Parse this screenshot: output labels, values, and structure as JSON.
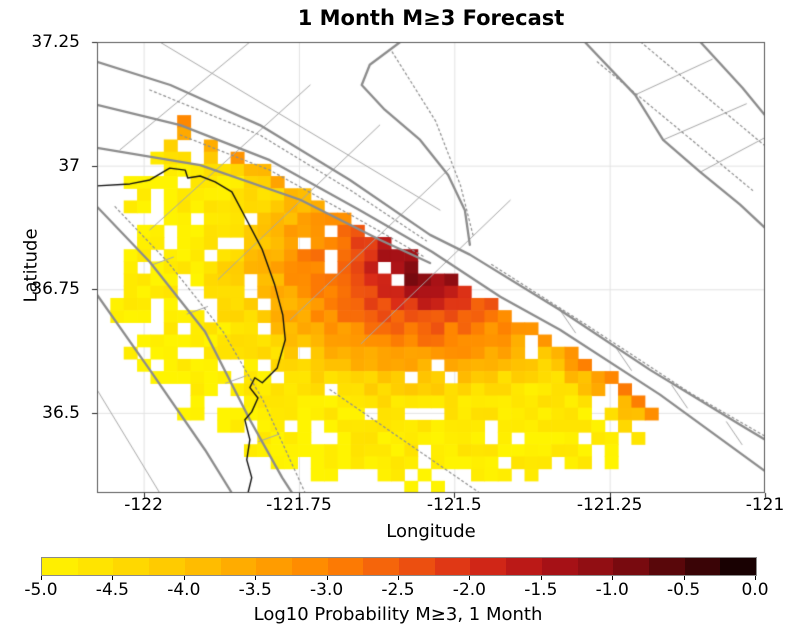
{
  "chart_data": {
    "type": "heatmap",
    "title": "1 Month M≥3 Forecast",
    "xlabel": "Longitude",
    "ylabel": "Latitude",
    "xlim": [
      -122.075,
      -121.0
    ],
    "ylim": [
      36.338,
      37.25
    ],
    "grid_on": true,
    "x_ticks": [
      {
        "value": -122.0,
        "label": "-122"
      },
      {
        "value": -121.75,
        "label": "-121.75"
      },
      {
        "value": -121.5,
        "label": "-121.5"
      },
      {
        "value": -121.25,
        "label": "-121.25"
      },
      {
        "value": -121.0,
        "label": "-121"
      }
    ],
    "y_ticks": [
      {
        "value": 37.25,
        "label": "37.25"
      },
      {
        "value": 37.0,
        "label": "37"
      },
      {
        "value": 36.75,
        "label": "36.75"
      },
      {
        "value": 36.5,
        "label": "36.5"
      }
    ],
    "grid": {
      "ncols": 50,
      "nrows": 37
    },
    "colorbar": {
      "label": "Log10 Probability M≥3, 1 Month",
      "min": -5.0,
      "max": 0.0,
      "segments": 20,
      "ticks": [
        {
          "value": -5.0,
          "label": "-5.0"
        },
        {
          "value": -4.5,
          "label": "-4.5"
        },
        {
          "value": -4.0,
          "label": "-4.0"
        },
        {
          "value": -3.5,
          "label": "-3.5"
        },
        {
          "value": -3.0,
          "label": "-3.0"
        },
        {
          "value": -2.5,
          "label": "-2.5"
        },
        {
          "value": -2.0,
          "label": "-2.0"
        },
        {
          "value": -1.5,
          "label": "-1.5"
        },
        {
          "value": -1.0,
          "label": "-1.0"
        },
        {
          "value": -0.5,
          "label": "-0.5"
        },
        {
          "value": 0.0,
          "label": "0.0"
        }
      ],
      "stops": [
        [
          -5.0,
          "#fff400"
        ],
        [
          -4.5,
          "#ffdf00"
        ],
        [
          -4.0,
          "#ffc400"
        ],
        [
          -3.5,
          "#ffa400"
        ],
        [
          -3.0,
          "#ff8400"
        ],
        [
          -2.5,
          "#f25a0e"
        ],
        [
          -2.0,
          "#da2c17"
        ],
        [
          -1.5,
          "#b01317"
        ],
        [
          -1.0,
          "#870c11"
        ],
        [
          -0.5,
          "#4a0508"
        ],
        [
          0.0,
          "#080000"
        ]
      ]
    },
    "field": {
      "description": "log10 probability of M>=3 in 1 month per cell; yellow background ~-4.5, orange band ~-3 along fault zone, peak ~-0.25 at hotspot",
      "lon_compress": 0.8,
      "background_level": -4.2,
      "background_edge_drop": 0.8,
      "noise_amplitude": 0.3,
      "hotspot": {
        "lon": -121.548,
        "lat": 36.794,
        "peak": -0.25,
        "falloff": 11.0,
        "falloff_exp": 0.72
      },
      "band": {
        "level": -3.0,
        "decay_per_deg": 28,
        "path": [
          [
            -122.075,
            37.123
          ],
          [
            -121.941,
            37.082
          ],
          [
            -121.797,
            37.011
          ],
          [
            -121.652,
            36.91
          ],
          [
            -121.548,
            36.81
          ],
          [
            -121.42,
            36.72
          ],
          [
            -121.28,
            36.6
          ],
          [
            -121.13,
            36.47
          ]
        ]
      },
      "region": {
        "center": [
          -121.52,
          36.8
        ],
        "rx_deg": 0.53,
        "ry_deg": 0.465,
        "edge_jitter": 0.14,
        "clip_lines": [
          {
            "a": [
              -121.29,
              37.25
            ],
            "b": [
              -121.0,
              36.874
            ]
          },
          {
            "a": [
              -121.33,
              36.638
            ],
            "b": [
              -121.0,
              36.389
            ]
          }
        ]
      },
      "speckle": {
        "base": 0.05,
        "edge": 0.55,
        "edge_power": 5
      }
    },
    "overlays": {
      "colors": {
        "fault": "#8c8c8c",
        "thin": "#a8a8a8",
        "dotted": "#8f8f8f",
        "coast": "#111111",
        "graticule": "#e3e3e3"
      },
      "faults_major": [
        [
          [
            -122.075,
            37.21
          ],
          [
            -121.957,
            37.163
          ],
          [
            -121.813,
            37.082
          ],
          [
            -121.668,
            36.971
          ],
          [
            -121.539,
            36.86
          ],
          [
            -121.475,
            36.82
          ],
          [
            -121.33,
            36.708
          ],
          [
            -121.185,
            36.587
          ],
          [
            -121.04,
            36.476
          ],
          [
            -120.992,
            36.44
          ]
        ],
        [
          [
            -122.075,
            37.123
          ],
          [
            -121.941,
            37.082
          ],
          [
            -121.797,
            37.011
          ],
          [
            -121.652,
            36.91
          ],
          [
            -121.536,
            36.826
          ],
          [
            -121.426,
            36.735
          ],
          [
            -121.33,
            36.668
          ],
          [
            -121.169,
            36.537
          ],
          [
            -120.992,
            36.375
          ]
        ],
        [
          [
            -122.075,
            37.036
          ],
          [
            -121.909,
            37.001
          ],
          [
            -121.748,
            36.931
          ],
          [
            -121.62,
            36.85
          ],
          [
            -121.539,
            36.803
          ]
        ],
        [
          [
            -121.587,
            37.25
          ],
          [
            -121.636,
            37.204
          ],
          [
            -121.649,
            37.163
          ],
          [
            -121.612,
            37.113
          ],
          [
            -121.555,
            37.052
          ],
          [
            -121.51,
            36.981
          ],
          [
            -121.483,
            36.91
          ],
          [
            -121.475,
            36.84
          ]
        ],
        [
          [
            -121.29,
            37.25
          ],
          [
            -121.209,
            37.143
          ],
          [
            -121.164,
            37.052
          ],
          [
            -121.104,
            36.987
          ],
          [
            -121.04,
            36.921
          ],
          [
            -121.0,
            36.874
          ]
        ],
        [
          [
            -121.104,
            37.25
          ],
          [
            -121.036,
            37.157
          ],
          [
            -121.0,
            37.102
          ]
        ],
        [
          [
            -122.075,
            36.917
          ],
          [
            -121.99,
            36.805
          ],
          [
            -121.901,
            36.664
          ],
          [
            -121.829,
            36.486
          ],
          [
            -121.777,
            36.369
          ],
          [
            -121.761,
            36.338
          ]
        ],
        [
          [
            -122.075,
            36.739
          ],
          [
            -121.99,
            36.587
          ],
          [
            -121.901,
            36.425
          ],
          [
            -121.858,
            36.338
          ]
        ]
      ],
      "faults_dotted": [
        [
          [
            -121.99,
            37.153
          ],
          [
            -121.813,
            37.062
          ],
          [
            -121.668,
            36.951
          ],
          [
            -121.545,
            36.848
          ]
        ],
        [
          [
            -121.941,
            37.062
          ],
          [
            -121.797,
            36.991
          ],
          [
            -121.652,
            36.89
          ],
          [
            -121.549,
            36.816
          ]
        ],
        [
          [
            -121.44,
            36.8
          ],
          [
            -121.29,
            36.68
          ],
          [
            -121.12,
            36.54
          ],
          [
            -120.992,
            36.447
          ]
        ],
        [
          [
            -122.046,
            36.917
          ],
          [
            -121.961,
            36.805
          ],
          [
            -121.872,
            36.664
          ],
          [
            -121.808,
            36.526
          ],
          [
            -121.74,
            36.338
          ]
        ],
        [
          [
            -121.27,
            37.21
          ],
          [
            -121.02,
            36.95
          ]
        ],
        [
          [
            -121.2,
            37.25
          ],
          [
            -121.0,
            37.04
          ]
        ],
        [
          [
            -121.7,
            36.547
          ],
          [
            -121.459,
            36.338
          ]
        ],
        [
          [
            -121.6,
            37.23
          ],
          [
            -121.53,
            37.09
          ],
          [
            -121.49,
            36.96
          ],
          [
            -121.47,
            36.86
          ]
        ]
      ],
      "faults_thin": [
        [
          [
            -121.974,
            37.25
          ],
          [
            -121.523,
            36.91
          ]
        ],
        [
          [
            -121.829,
            37.25
          ],
          [
            -122.038,
            37.032
          ]
        ],
        [
          [
            -121.732,
            37.163
          ],
          [
            -121.99,
            36.87
          ]
        ],
        [
          [
            -121.62,
            37.082
          ],
          [
            -121.88,
            36.77
          ]
        ],
        [
          [
            -121.507,
            36.995
          ],
          [
            -121.764,
            36.688
          ]
        ],
        [
          [
            -121.41,
            36.93
          ],
          [
            -121.65,
            36.64
          ]
        ],
        [
          [
            -122.075,
            36.547
          ],
          [
            -121.974,
            36.338
          ]
        ],
        [
          [
            -121.209,
            37.143
          ],
          [
            -121.085,
            37.215
          ]
        ],
        [
          [
            -121.164,
            37.052
          ],
          [
            -121.03,
            37.125
          ]
        ],
        [
          [
            -121.104,
            36.987
          ],
          [
            -120.995,
            37.06
          ]
        ],
        [
          [
            -121.33,
            36.708
          ],
          [
            -121.305,
            36.662
          ]
        ],
        [
          [
            -121.24,
            36.632
          ],
          [
            -121.215,
            36.586
          ]
        ],
        [
          [
            -121.15,
            36.556
          ],
          [
            -121.125,
            36.51
          ]
        ],
        [
          [
            -121.062,
            36.482
          ],
          [
            -121.037,
            36.436
          ]
        ],
        [
          [
            -121.985,
            36.8
          ],
          [
            -121.952,
            36.815
          ]
        ],
        [
          [
            -121.93,
            36.7
          ],
          [
            -121.897,
            36.715
          ]
        ],
        [
          [
            -121.868,
            36.56
          ],
          [
            -121.835,
            36.575
          ]
        ],
        [
          [
            -121.815,
            36.442
          ],
          [
            -121.782,
            36.457
          ]
        ]
      ],
      "coastline": [
        [
          [
            -122.075,
            36.959
          ],
          [
            -122.022,
            36.963
          ],
          [
            -121.99,
            36.971
          ],
          [
            -121.958,
            36.995
          ],
          [
            -121.933,
            36.991
          ],
          [
            -121.929,
            36.975
          ],
          [
            -121.909,
            36.979
          ],
          [
            -121.885,
            36.967
          ],
          [
            -121.858,
            36.947
          ],
          [
            -121.834,
            36.89
          ],
          [
            -121.809,
            36.83
          ],
          [
            -121.789,
            36.759
          ],
          [
            -121.776,
            36.698
          ],
          [
            -121.772,
            36.648
          ],
          [
            -121.785,
            36.591
          ],
          [
            -121.809,
            36.561
          ],
          [
            -121.821,
            36.571
          ],
          [
            -121.829,
            36.551
          ],
          [
            -121.816,
            36.53
          ],
          [
            -121.826,
            36.502
          ],
          [
            -121.837,
            36.486
          ],
          [
            -121.829,
            36.446
          ],
          [
            -121.834,
            36.405
          ],
          [
            -121.826,
            36.369
          ],
          [
            -121.832,
            36.338
          ]
        ]
      ]
    }
  }
}
